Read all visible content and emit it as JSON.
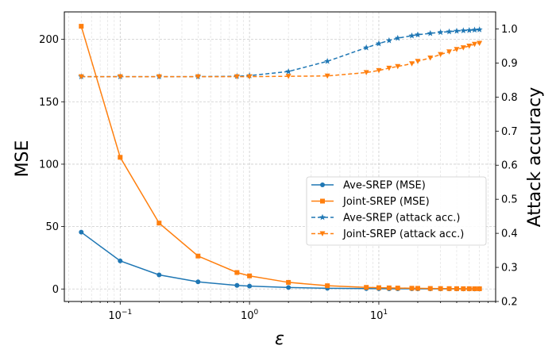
{
  "chart_data": {
    "type": "line",
    "title": "",
    "xlabel": "ε",
    "ylabel": "MSE",
    "y2label": "Attack accuracy",
    "xscale": "log",
    "xlim": [
      0.037,
      80
    ],
    "ylim": [
      -10,
      222
    ],
    "y2lim": [
      0.2,
      1.05
    ],
    "grid": true,
    "legend_position": "center-right",
    "x_ticks": [
      {
        "value": 0.1,
        "base": "10",
        "exp": "−1"
      },
      {
        "value": 1,
        "base": "10",
        "exp": "0"
      },
      {
        "value": 10,
        "base": "10",
        "exp": "1"
      }
    ],
    "y_ticks": [
      0,
      50,
      100,
      150,
      200
    ],
    "y2_ticks": [
      0.2,
      0.3,
      0.4,
      0.5,
      0.6,
      0.7,
      0.8,
      0.9,
      1.0
    ],
    "y2_tick_labels": [
      "0.2",
      "0.3",
      "0.4",
      "0.5",
      "0.6",
      "0.7",
      "0.8",
      "0.9",
      "1.0"
    ],
    "series": [
      {
        "name": "Ave-SREP (MSE)",
        "axis": "left",
        "color": "#1f77b4",
        "line_style": "solid",
        "marker": "circle",
        "x": [
          0.05,
          0.1,
          0.2,
          0.4,
          0.8,
          1,
          2,
          4,
          8,
          10,
          12,
          14,
          18,
          20,
          25,
          30,
          35,
          40,
          45,
          50,
          55,
          60
        ],
        "y": [
          45.5,
          22.5,
          11.3,
          5.7,
          2.9,
          2.3,
          1.2,
          0.6,
          0.3,
          0.25,
          0.2,
          0.18,
          0.14,
          0.12,
          0.1,
          0.08,
          0.07,
          0.06,
          0.05,
          0.05,
          0.04,
          0.04
        ]
      },
      {
        "name": "Joint-SREP (MSE)",
        "axis": "left",
        "color": "#ff7f0e",
        "line_style": "solid",
        "marker": "square",
        "x": [
          0.05,
          0.1,
          0.2,
          0.4,
          0.8,
          1,
          2,
          4,
          8,
          10,
          12,
          14,
          18,
          20,
          25,
          30,
          35,
          40,
          45,
          50,
          55,
          60
        ],
        "y": [
          210.5,
          105.5,
          52.8,
          26.4,
          13.2,
          10.5,
          5.3,
          2.6,
          1.3,
          1.05,
          0.9,
          0.75,
          0.6,
          0.53,
          0.42,
          0.35,
          0.3,
          0.26,
          0.23,
          0.21,
          0.19,
          0.18
        ]
      },
      {
        "name": "Ave-SREP (attack acc.)",
        "axis": "right",
        "color": "#1f77b4",
        "line_style": "dashed",
        "marker": "star",
        "x": [
          0.05,
          0.1,
          0.2,
          0.4,
          0.8,
          1,
          2,
          4,
          8,
          10,
          12,
          14,
          18,
          20,
          25,
          30,
          35,
          40,
          45,
          50,
          55,
          60
        ],
        "y": [
          0.86,
          0.86,
          0.86,
          0.86,
          0.861,
          0.863,
          0.875,
          0.905,
          0.945,
          0.957,
          0.966,
          0.973,
          0.98,
          0.983,
          0.987,
          0.99,
          0.992,
          0.994,
          0.995,
          0.996,
          0.997,
          0.998
        ]
      },
      {
        "name": "Joint-SREP (attack acc.)",
        "axis": "right",
        "color": "#ff7f0e",
        "line_style": "dashed",
        "marker": "triangle-down",
        "x": [
          0.05,
          0.1,
          0.2,
          0.4,
          0.8,
          1,
          2,
          4,
          8,
          10,
          12,
          14,
          18,
          20,
          25,
          30,
          35,
          40,
          45,
          50,
          55,
          60
        ],
        "y": [
          0.86,
          0.86,
          0.86,
          0.86,
          0.86,
          0.86,
          0.861,
          0.862,
          0.872,
          0.878,
          0.885,
          0.89,
          0.898,
          0.905,
          0.915,
          0.925,
          0.933,
          0.94,
          0.945,
          0.95,
          0.955,
          0.958
        ]
      }
    ]
  }
}
